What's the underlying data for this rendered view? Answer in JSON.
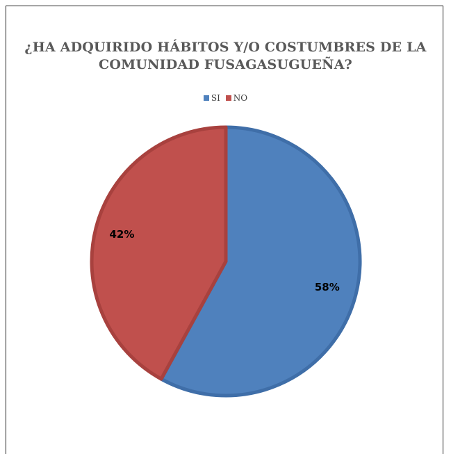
{
  "chart_data": {
    "type": "pie",
    "title_lines": [
      "¿HA ADQUIRIDO HÁBITOS Y/O COSTUMBRES DE LA",
      "COMUNIDAD FUSAGASUGUEÑA?"
    ],
    "legend_position": "top",
    "categories": [
      "SI",
      "NO"
    ],
    "values": [
      58,
      42
    ],
    "data_labels": [
      "58%",
      "42%"
    ],
    "colors": [
      "#4f81bd",
      "#c0504d"
    ],
    "border_colors": [
      "#3f6ea8",
      "#a8413e"
    ]
  }
}
